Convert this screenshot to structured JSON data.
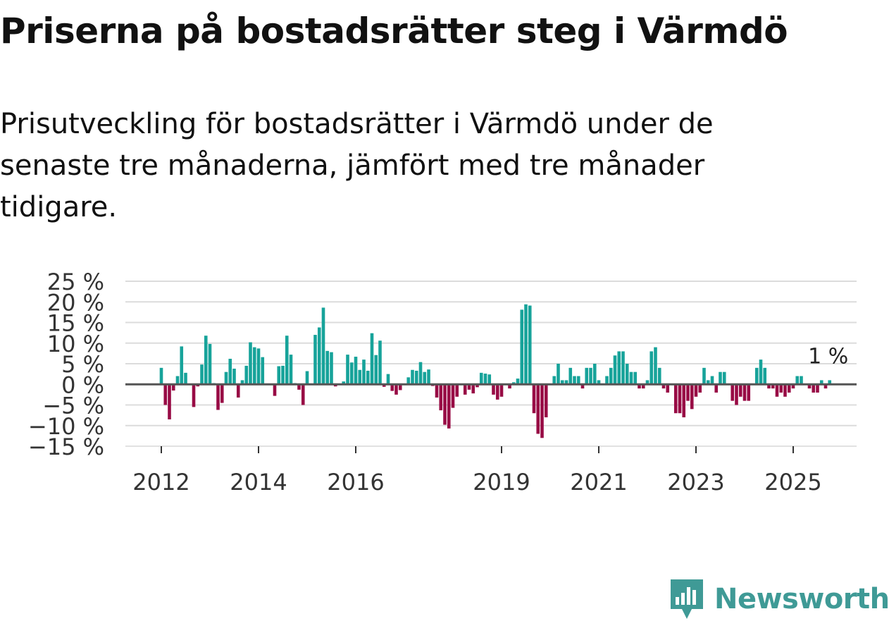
{
  "title": "Priserna på bostadsrätter steg i Värmdö",
  "subtitle": "Prisutveckling för bostadsrätter i Värmdö under de senaste tre månaderna, jämfört med tre månader tidigare.",
  "brand": {
    "name": "Newsworthy",
    "icon": "newsworthy-logo-icon",
    "color": "#3f9a96"
  },
  "chart_data": {
    "type": "bar",
    "title": "",
    "xlabel": "",
    "ylabel": "",
    "ylim": [
      -15,
      25
    ],
    "grid": true,
    "positive_color": "#17a39a",
    "negative_color": "#980b45",
    "x_start": "2012-01",
    "frequency": "monthly",
    "x_ticks": [
      {
        "label": "2012",
        "year": 2012
      },
      {
        "label": "2014",
        "year": 2014
      },
      {
        "label": "2016",
        "year": 2016
      },
      {
        "label": "2019",
        "year": 2019
      },
      {
        "label": "2021",
        "year": 2021
      },
      {
        "label": "2023",
        "year": 2023
      },
      {
        "label": "2025",
        "year": 2025
      }
    ],
    "y_ticks": [
      {
        "value": 25,
        "label": "25 %"
      },
      {
        "value": 20,
        "label": "20 %"
      },
      {
        "value": 15,
        "label": "15 %"
      },
      {
        "value": 10,
        "label": "10 %"
      },
      {
        "value": 5,
        "label": "5 %"
      },
      {
        "value": 0,
        "label": "0 %"
      },
      {
        "value": -5,
        "label": "−5 %"
      },
      {
        "value": -10,
        "label": "−10 %"
      },
      {
        "value": -15,
        "label": "−15 %"
      }
    ],
    "annotation": {
      "text": "1 %",
      "target": "last"
    },
    "series": [
      {
        "name": "Prisutveckling",
        "values": [
          4,
          -5,
          -8.5,
          -1.5,
          2,
          9.2,
          2.8,
          0,
          -5.5,
          -0.5,
          4.8,
          11.8,
          9.8,
          0.3,
          -6.2,
          -4.5,
          3,
          6.2,
          3.8,
          -3.2,
          1,
          4.5,
          10.2,
          9,
          8.7,
          6.6,
          0.2,
          0,
          -2.8,
          4.4,
          4.5,
          11.8,
          7.2,
          0.3,
          -1.3,
          -5,
          3.2,
          0,
          12,
          13.8,
          18.6,
          8.1,
          7.8,
          -0.5,
          0,
          0.7,
          7.2,
          5.3,
          6.7,
          3.5,
          6,
          3.3,
          12.4,
          7.1,
          10.6,
          -0.6,
          2.5,
          -1.6,
          -2.5,
          -1.4,
          0,
          1.7,
          3.5,
          3.3,
          5.4,
          3,
          3.6,
          -0.4,
          -3.2,
          -6.3,
          -9.8,
          -10.7,
          -5.7,
          -3,
          0,
          -2.5,
          -1.3,
          -2.2,
          -0.7,
          2.8,
          2.6,
          2.4,
          -2.5,
          -3.7,
          -3,
          0,
          -1,
          0.5,
          1.4,
          18.1,
          19.4,
          19.1,
          -7,
          -12,
          -13,
          -8,
          0,
          2,
          5,
          1,
          1,
          4,
          2,
          2,
          -1,
          4,
          4,
          5,
          1,
          0,
          2,
          4,
          7,
          8,
          8,
          5,
          3,
          3,
          -1,
          -1,
          1,
          8,
          9,
          4,
          -1,
          -2,
          0,
          -7,
          -7,
          -8,
          -4,
          -6,
          -3,
          -2,
          4,
          1,
          2,
          -2,
          3,
          3,
          0,
          -4,
          -5,
          -3,
          -4,
          -4,
          0,
          4,
          6,
          4,
          -1,
          -1,
          -3,
          -2,
          -3,
          -2,
          -1,
          2,
          2,
          0,
          -1,
          -2,
          -2,
          1,
          -1,
          1
        ]
      }
    ]
  }
}
